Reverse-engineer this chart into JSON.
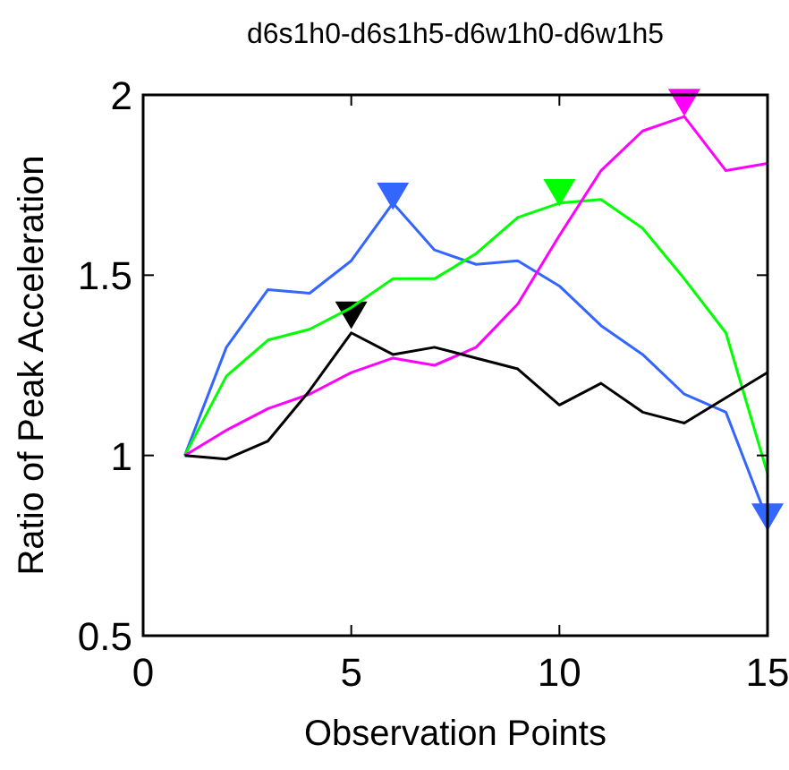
{
  "chart_data": {
    "type": "line",
    "title": "d6s1h0-d6s1h5-d6w1h0-d6w1h5",
    "xlabel": "Observation Points",
    "ylabel": "Ratio of Peak Acceleration",
    "x": [
      1,
      2,
      3,
      4,
      5,
      6,
      7,
      8,
      9,
      10,
      11,
      12,
      13,
      14,
      15
    ],
    "xlim": [
      0,
      15
    ],
    "xticks": [
      0,
      5,
      10,
      15
    ],
    "ylim": [
      0.5,
      2
    ],
    "yticks": [
      0.5,
      1,
      1.5,
      2
    ],
    "grid": false,
    "line_style": "solid",
    "series": [
      {
        "color": "#3366ff",
        "values": [
          1.0,
          1.3,
          1.46,
          1.45,
          1.54,
          1.7,
          1.57,
          1.53,
          1.54,
          1.47,
          1.36,
          1.28,
          1.17,
          1.12,
          0.82
        ]
      },
      {
        "color": "#00ff00",
        "values": [
          1.0,
          1.22,
          1.32,
          1.35,
          1.41,
          1.49,
          1.49,
          1.56,
          1.66,
          1.7,
          1.71,
          1.63,
          1.49,
          1.34,
          0.95
        ]
      },
      {
        "color": "#ff00ff",
        "values": [
          1.0,
          1.07,
          1.13,
          1.17,
          1.23,
          1.27,
          1.25,
          1.3,
          1.42,
          1.61,
          1.79,
          1.9,
          1.94,
          1.79,
          1.81
        ]
      },
      {
        "color": "#000000",
        "values": [
          1.0,
          0.99,
          1.04,
          1.18,
          1.34,
          1.28,
          1.3,
          1.27,
          1.24,
          1.14,
          1.2,
          1.12,
          1.09,
          1.16,
          1.23
        ]
      },
      {
        "type": "scatter",
        "marker": "triangle",
        "x": [
          6,
          15,
          10,
          13,
          5
        ],
        "values": [
          1.73,
          0.84,
          1.74,
          1.99,
          1.4
        ],
        "colors": [
          "#3366ff",
          "#3366ff",
          "#00ff00",
          "#ff00ff",
          "#000000"
        ]
      }
    ]
  }
}
